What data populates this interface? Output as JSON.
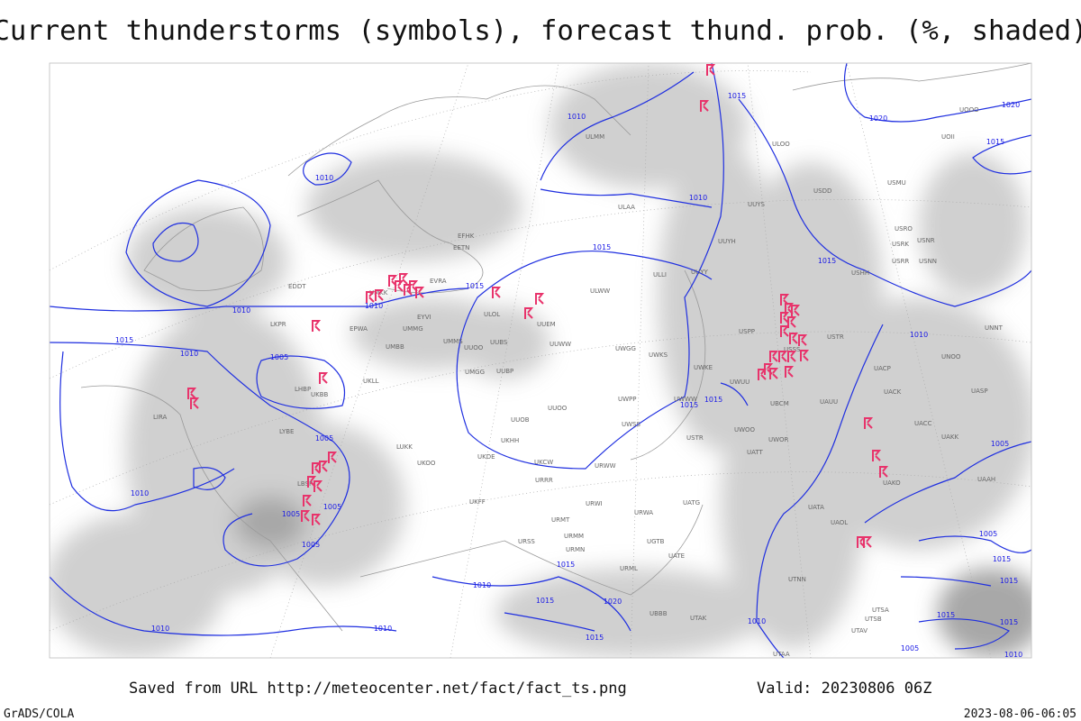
{
  "header": {
    "title": "Current thunderstorms (symbols), forecast thund. prob. (%, shaded)"
  },
  "isobar_labels": [
    "1010",
    "1015",
    "1020",
    "1020",
    "1015",
    "1010",
    "1010",
    "1015",
    "1015",
    "1015",
    "1010",
    "1010",
    "1015",
    "1010",
    "1005",
    "1015",
    "1015",
    "1010",
    "1005",
    "1005",
    "1010",
    "1005",
    "1005",
    "1005",
    "1010",
    "1015",
    "1015",
    "1020",
    "1010",
    "1010",
    "1015",
    "1010",
    "1005",
    "1015",
    "1015",
    "1015",
    "1015",
    "1005",
    "1010"
  ],
  "stations": [
    "ULAA",
    "UUYS",
    "USDD",
    "USMU",
    "UUYH",
    "USRO",
    "USRK",
    "USNR",
    "USRR",
    "USNN",
    "USHH",
    "UUYY",
    "ULWW",
    "ULOL",
    "UUEM",
    "UMMG",
    "UMMS",
    "UUOO",
    "UUBS",
    "UUWW",
    "UWGG",
    "UWKS",
    "UUBP",
    "UMGG",
    "UKLL",
    "UWPP",
    "UUOO",
    "UWWW",
    "UUOB",
    "UWSS",
    "UKHH",
    "UKDE",
    "UKCW",
    "URWW",
    "UKOO",
    "UKFF",
    "URRR",
    "URWI",
    "UATG",
    "URMT",
    "URWA",
    "URMM",
    "URMN",
    "URSS",
    "UATE",
    "URML",
    "UGTB",
    "UBBB",
    "UTAK",
    "UWOO",
    "UWOR",
    "UATT",
    "USTR",
    "UACP",
    "UACK",
    "UASP",
    "UACC",
    "UAKK",
    "UAAH",
    "UAKO",
    "UATA",
    "UAOL",
    "UTNN",
    "UTSA",
    "UTSB",
    "UTAV",
    "UTAA",
    "UNNT",
    "UNBB",
    "UNOO",
    "USTR",
    "USSS",
    "ULMM",
    "ULOO",
    "UOOO",
    "UOII",
    "EFHK",
    "EETN",
    "EVRA",
    "EYVI",
    "EPWA",
    "UMBB",
    "LKPR",
    "EDDT",
    "LHBP",
    "LBSF",
    "LYBE",
    "LIRA",
    "LUKK",
    "USPP",
    "UWKE",
    "UWUU",
    "UBCM",
    "UAUU",
    "ULLI",
    "UMKK",
    "UKBB"
  ],
  "footer": {
    "saved": "Saved from URL http://meteocenter.net/fact/fact_ts.png",
    "valid": "Valid: 20230806 06Z",
    "credit": "GrADS/COLA",
    "timestamp": "2023-08-06-06:05"
  }
}
